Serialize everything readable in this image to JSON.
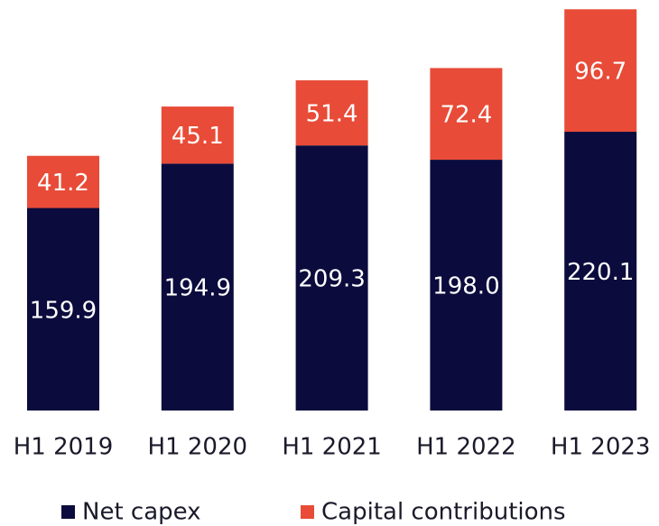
{
  "chart_data": {
    "type": "stacked_bar",
    "categories": [
      "H1 2019",
      "H1 2020",
      "H1 2021",
      "H1 2022",
      "H1 2023"
    ],
    "series": [
      {
        "name": "Net capex",
        "color": "#0b0b3d",
        "values": [
          159.9,
          194.9,
          209.3,
          198.0,
          220.1
        ],
        "value_labels": [
          "159.9",
          "194.9",
          "209.3",
          "198.0",
          "220.1"
        ]
      },
      {
        "name": "Capital contributions",
        "color": "#e84b37",
        "values": [
          41.2,
          45.1,
          51.4,
          72.4,
          96.7
        ],
        "value_labels": [
          "41.2",
          "45.1",
          "51.4",
          "72.4",
          "96.7"
        ]
      }
    ],
    "ylim": [
      0,
      317
    ],
    "legend": "bottom"
  }
}
